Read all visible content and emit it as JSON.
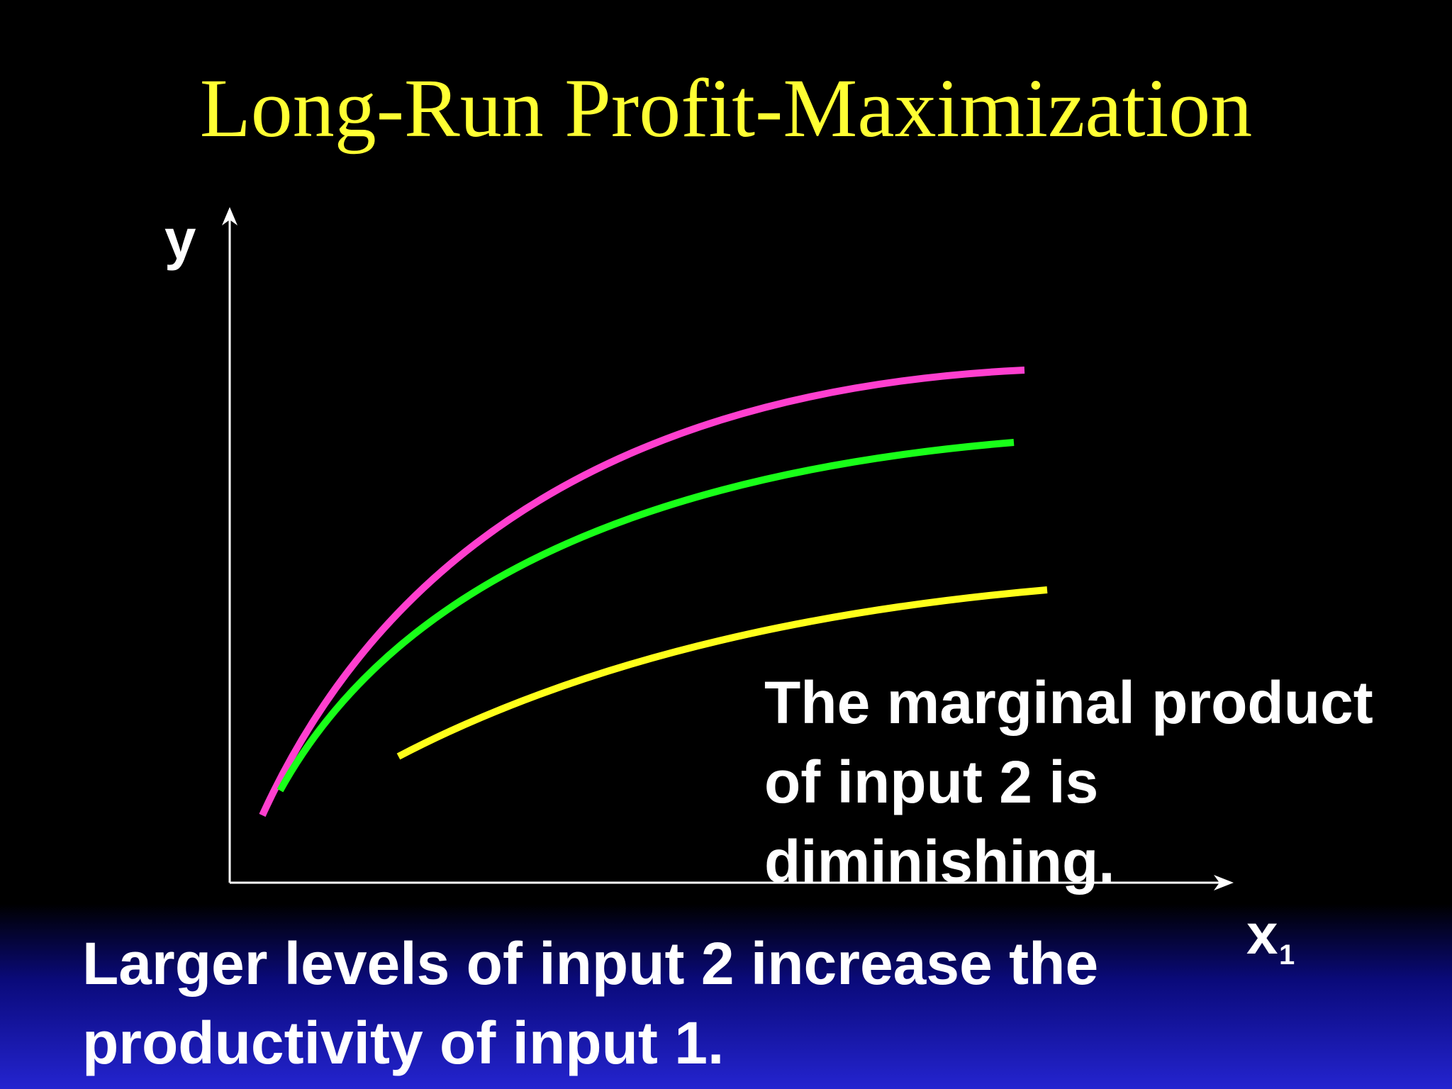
{
  "slide": {
    "title": "Long-Run Profit-Maximization",
    "colors": {
      "background": "#000000",
      "title": "#ffff33",
      "text": "#ffffff",
      "bottom_gradient": "#2424d0"
    }
  },
  "diagram": {
    "y_axis_label": "y",
    "x_axis_label": "x",
    "x_axis_subscript": "1",
    "curves": [
      {
        "id": "highest-input-2",
        "color": "#ff3fcf"
      },
      {
        "id": "medium-input-2",
        "color": "#19ff19"
      },
      {
        "id": "lowest-input-2",
        "color": "#ffff1a"
      }
    ]
  },
  "annotation": {
    "lines": [
      "The marginal product",
      "of input 2 is",
      "diminishing."
    ]
  },
  "caption": {
    "lines": [
      "Larger levels of input 2 increase the",
      "productivity of input 1."
    ]
  }
}
